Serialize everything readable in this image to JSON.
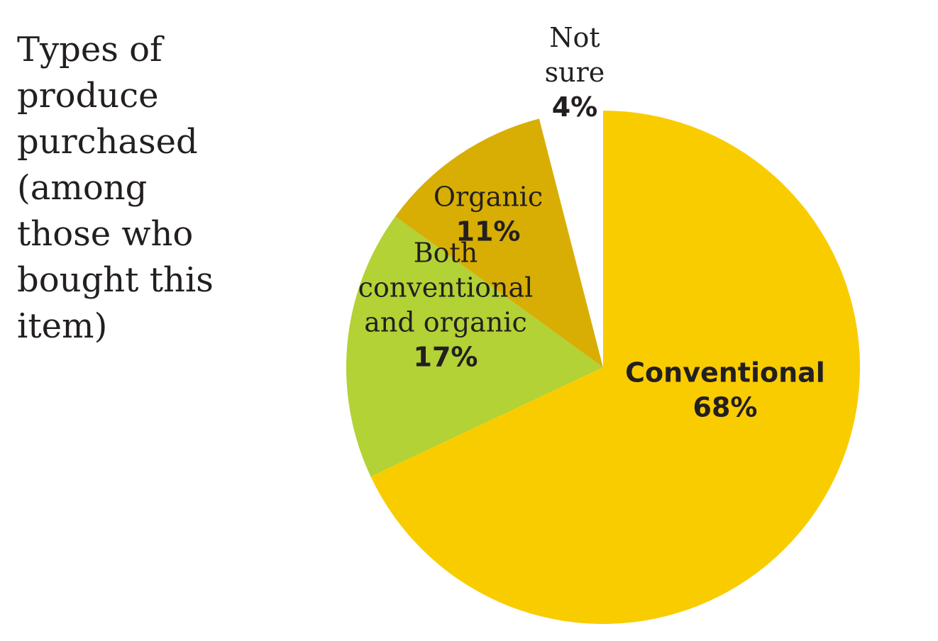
{
  "chart_data": {
    "type": "pie",
    "title": "Types of\nproduce\npurchased\n(among\nthose who\nbought this\nitem)",
    "slices": [
      {
        "label_lines": [
          "Conventional"
        ],
        "value": 68,
        "value_label": "68%",
        "color": "#f9cc00",
        "label_weight": "bold"
      },
      {
        "label_lines": [
          "Both",
          "conventional",
          "and organic"
        ],
        "value": 17,
        "value_label": "17%",
        "color": "#b2d235",
        "label_weight": "normal"
      },
      {
        "label_lines": [
          "Organic"
        ],
        "value": 11,
        "value_label": "11%",
        "color": "#d8ae04",
        "label_weight": "normal"
      },
      {
        "label_lines": [
          "Not",
          "sure"
        ],
        "value": 4,
        "value_label": "4%",
        "color": "#ffffff",
        "label_weight": "normal"
      }
    ]
  }
}
